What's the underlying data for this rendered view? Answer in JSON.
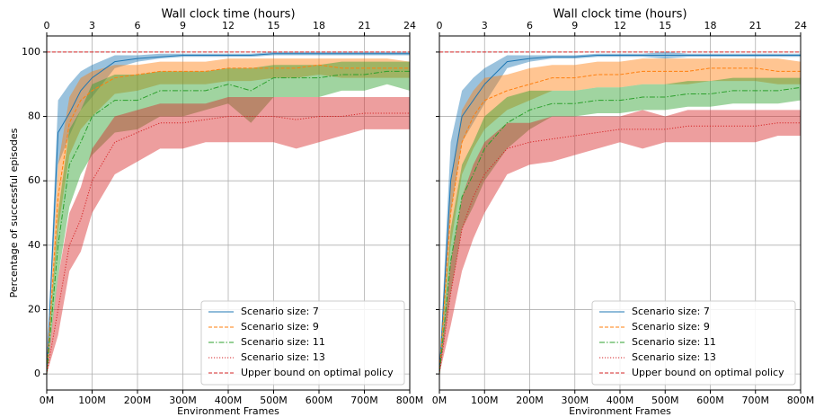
{
  "chart_data": [
    {
      "type": "line",
      "xlabel": "Environment Frames",
      "x2label": "Wall clock time (hours)",
      "ylabel": "Percentage of successful episodes",
      "x": [
        0,
        25,
        50,
        75,
        100,
        150,
        200,
        250,
        300,
        350,
        400,
        450,
        500,
        550,
        600,
        650,
        700,
        750,
        800
      ],
      "xlim": [
        0,
        800
      ],
      "xticks": [
        {
          "value": 0,
          "label": "0M"
        },
        {
          "value": 100,
          "label": "100M"
        },
        {
          "value": 200,
          "label": "200M"
        },
        {
          "value": 300,
          "label": "300M"
        },
        {
          "value": 400,
          "label": "400M"
        },
        {
          "value": 500,
          "label": "500M"
        },
        {
          "value": 600,
          "label": "600M"
        },
        {
          "value": 700,
          "label": "700M"
        },
        {
          "value": 800,
          "label": "800M"
        }
      ],
      "x2lim": [
        0,
        24
      ],
      "x2ticks": [
        0,
        3,
        6,
        9,
        12,
        15,
        18,
        21,
        24
      ],
      "ylim": [
        -5,
        105
      ],
      "yticks": [
        0,
        20,
        40,
        60,
        80,
        100
      ],
      "show_ytick_labels": true,
      "grid": true,
      "legend": "lower right",
      "series": [
        {
          "name": "Scenario size: 7",
          "color": "#1f77b4",
          "dash": "solid",
          "values": [
            0,
            75,
            81,
            88,
            92,
            97,
            98,
            98.5,
            99,
            99,
            99,
            99,
            99.5,
            99.5,
            99.5,
            99.5,
            99.5,
            99.5,
            99.5
          ],
          "lower": [
            0,
            65,
            74,
            82,
            86,
            95,
            97,
            98,
            98.5,
            98.5,
            98.5,
            98.5,
            99,
            99,
            99,
            99,
            99,
            99,
            99
          ],
          "upper": [
            1,
            85,
            90,
            94,
            96,
            99,
            99,
            99.5,
            99.5,
            99.5,
            99.5,
            99.5,
            100,
            100,
            100,
            100,
            100,
            100,
            100
          ]
        },
        {
          "name": "Scenario size: 9",
          "color": "#ff7f0e",
          "dash": "dashed",
          "values": [
            0,
            55,
            78,
            85,
            88,
            92,
            93,
            94,
            94,
            94,
            95,
            95,
            95,
            95,
            96,
            95,
            95,
            95,
            95
          ],
          "lower": [
            0,
            45,
            68,
            76,
            80,
            87,
            88,
            90,
            90,
            90,
            91,
            91,
            92,
            92,
            93,
            92,
            92,
            92,
            92
          ],
          "upper": [
            1,
            65,
            86,
            92,
            94,
            96,
            96,
            97,
            97,
            97,
            98,
            98,
            98,
            98,
            98,
            98,
            98,
            98,
            97
          ]
        },
        {
          "name": "Scenario size: 11",
          "color": "#2ca02c",
          "dash": "dashdot",
          "values": [
            0,
            40,
            65,
            72,
            80,
            85,
            85,
            88,
            88,
            88,
            90,
            88,
            92,
            92,
            92,
            93,
            93,
            94,
            94
          ],
          "lower": [
            0,
            30,
            52,
            62,
            68,
            75,
            76,
            80,
            80,
            82,
            84,
            78,
            86,
            86,
            86,
            88,
            88,
            90,
            88
          ],
          "upper": [
            1,
            50,
            76,
            82,
            90,
            93,
            93,
            94,
            94,
            94,
            95,
            95,
            96,
            96,
            96,
            97,
            97,
            97,
            97
          ]
        },
        {
          "name": "Scenario size: 13",
          "color": "#d62728",
          "dash": "dotted",
          "values": [
            0,
            20,
            40,
            48,
            60,
            72,
            75,
            78,
            78,
            79,
            80,
            80,
            80,
            79,
            80,
            80,
            81,
            81,
            81
          ],
          "lower": [
            0,
            12,
            32,
            38,
            50,
            62,
            66,
            70,
            70,
            72,
            72,
            72,
            72,
            70,
            72,
            74,
            76,
            76,
            76
          ],
          "upper": [
            1,
            30,
            50,
            58,
            70,
            80,
            82,
            84,
            84,
            84,
            86,
            86,
            86,
            86,
            86,
            86,
            86,
            86,
            86
          ]
        }
      ],
      "hline": {
        "name": "Upper bound on optimal policy",
        "value": 100,
        "color": "#d62728"
      }
    },
    {
      "type": "line",
      "xlabel": "Environment Frames",
      "x2label": "Wall clock time (hours)",
      "x": [
        0,
        25,
        50,
        75,
        100,
        150,
        200,
        250,
        300,
        350,
        400,
        450,
        500,
        550,
        600,
        650,
        700,
        750,
        800
      ],
      "xlim": [
        0,
        800
      ],
      "xticks": [
        {
          "value": 0,
          "label": "0M"
        },
        {
          "value": 100,
          "label": "100M"
        },
        {
          "value": 200,
          "label": "200M"
        },
        {
          "value": 300,
          "label": "300M"
        },
        {
          "value": 400,
          "label": "400M"
        },
        {
          "value": 500,
          "label": "500M"
        },
        {
          "value": 600,
          "label": "600M"
        },
        {
          "value": 700,
          "label": "700M"
        },
        {
          "value": 800,
          "label": "800M"
        }
      ],
      "x2lim": [
        0,
        24
      ],
      "x2ticks": [
        0,
        3,
        6,
        9,
        12,
        15,
        18,
        21,
        24
      ],
      "ylim": [
        -5,
        105
      ],
      "yticks": [
        0,
        20,
        40,
        60,
        80,
        100
      ],
      "show_ytick_labels": false,
      "grid": true,
      "legend": "lower right",
      "series": [
        {
          "name": "Scenario size: 7",
          "color": "#1f77b4",
          "dash": "solid",
          "values": [
            0,
            60,
            80,
            85,
            90,
            97,
            98,
            98.5,
            98.5,
            99,
            99,
            99,
            99,
            99,
            99,
            99,
            99,
            99,
            99
          ],
          "lower": [
            0,
            50,
            72,
            78,
            84,
            95,
            97,
            98,
            98,
            98.5,
            98.5,
            98.5,
            98,
            98.5,
            98.5,
            98.5,
            98.5,
            98.5,
            98.5
          ],
          "upper": [
            1,
            72,
            88,
            92,
            95,
            99,
            99,
            99,
            99,
            99.5,
            99.5,
            99.5,
            100,
            99.5,
            99.5,
            99.5,
            99.5,
            99.5,
            99.5
          ]
        },
        {
          "name": "Scenario size: 9",
          "color": "#ff7f0e",
          "dash": "dashed",
          "values": [
            0,
            50,
            72,
            80,
            85,
            88,
            90,
            92,
            92,
            93,
            93,
            94,
            94,
            94,
            95,
            95,
            95,
            94,
            94
          ],
          "lower": [
            0,
            40,
            62,
            70,
            76,
            82,
            85,
            88,
            88,
            89,
            89,
            90,
            90,
            90,
            91,
            91,
            91,
            90,
            90
          ],
          "upper": [
            1,
            60,
            82,
            88,
            92,
            93,
            95,
            96,
            96,
            97,
            97,
            98,
            98,
            98,
            98,
            98,
            98,
            98,
            97
          ]
        },
        {
          "name": "Scenario size: 11",
          "color": "#2ca02c",
          "dash": "dashdot",
          "values": [
            0,
            35,
            55,
            62,
            70,
            78,
            82,
            84,
            84,
            85,
            85,
            86,
            86,
            87,
            87,
            88,
            88,
            88,
            89
          ],
          "lower": [
            0,
            25,
            45,
            52,
            60,
            70,
            76,
            80,
            80,
            81,
            81,
            82,
            82,
            83,
            83,
            84,
            84,
            84,
            85
          ],
          "upper": [
            1,
            45,
            65,
            72,
            80,
            86,
            88,
            88,
            88,
            89,
            89,
            90,
            90,
            91,
            91,
            92,
            92,
            92,
            92
          ]
        },
        {
          "name": "Scenario size: 13",
          "color": "#d62728",
          "dash": "dotted",
          "values": [
            0,
            25,
            45,
            55,
            62,
            70,
            72,
            73,
            74,
            75,
            76,
            76,
            76,
            77,
            77,
            77,
            77,
            78,
            78
          ],
          "lower": [
            0,
            15,
            32,
            42,
            50,
            62,
            65,
            66,
            68,
            70,
            72,
            70,
            72,
            72,
            72,
            72,
            72,
            74,
            74
          ],
          "upper": [
            1,
            35,
            55,
            65,
            72,
            78,
            78,
            80,
            80,
            80,
            80,
            82,
            80,
            82,
            82,
            82,
            82,
            82,
            82
          ]
        }
      ],
      "hline": {
        "name": "Upper bound on optimal policy",
        "value": 100,
        "color": "#d62728"
      }
    }
  ]
}
